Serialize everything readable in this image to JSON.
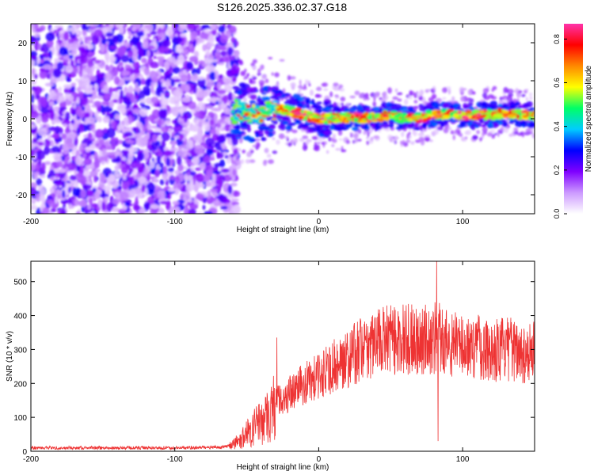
{
  "title": "S126.2025.336.02.37.G18",
  "chart_data": [
    {
      "type": "heatmap",
      "xlabel": "Height of straight line (km)",
      "ylabel": "Frequency (Hz)",
      "xlim": [
        -200,
        150
      ],
      "ylim": [
        -25,
        25
      ],
      "xticks": [
        -200,
        -100,
        0,
        100
      ],
      "yticks": [
        -20,
        -10,
        0,
        10,
        20
      ],
      "colorbar": {
        "label": "Normalized spectral amplitude",
        "range": [
          0.0,
          0.87
        ],
        "ticks": [
          0.0,
          0.2,
          0.4,
          0.6,
          0.8
        ],
        "colors": [
          "#ffffff",
          "#cc99ff",
          "#7f00ff",
          "#0000ff",
          "#00ccff",
          "#00ff66",
          "#ffff00",
          "#ff8800",
          "#ff0000",
          "#ff33aa"
        ]
      },
      "regions": [
        {
          "name": "noise",
          "x_range": [
            -200,
            -60
          ],
          "y_range": [
            -25,
            25
          ],
          "amplitude_range": [
            0.0,
            0.25
          ]
        },
        {
          "name": "signal",
          "x_range": [
            -60,
            150
          ],
          "center_frequency_hz": 0.5,
          "amplitude_range": [
            0.3,
            0.87
          ]
        }
      ],
      "signal_trace": {
        "x": [
          -58,
          -50,
          -40,
          -30,
          -20,
          -10,
          0,
          10,
          20,
          30,
          40,
          50,
          60,
          70,
          80,
          90,
          100,
          110,
          120,
          130,
          140,
          150
        ],
        "y": [
          2.5,
          1.5,
          1.0,
          2.5,
          2.0,
          1.0,
          0.0,
          0.2,
          0.3,
          0.2,
          0.5,
          1.0,
          0.0,
          0.3,
          1.0,
          1.2,
          1.0,
          1.0,
          1.0,
          1.5,
          1.0,
          0.8
        ]
      }
    },
    {
      "type": "line",
      "xlabel": "Height of straight line (km)",
      "ylabel": "SNR (10 * v/v)",
      "xlim": [
        -200,
        150
      ],
      "ylim": [
        0,
        560
      ],
      "xticks": [
        -200,
        -100,
        0,
        100
      ],
      "yticks": [
        0,
        100,
        200,
        300,
        400,
        500
      ],
      "color": "#ee3333",
      "series": [
        {
          "x": [
            -200,
            -150,
            -100,
            -65,
            -55,
            -45,
            -35,
            -28,
            -20,
            -10,
            0,
            10,
            20,
            30,
            40,
            50,
            60,
            70,
            80,
            83,
            90,
            100,
            110,
            120,
            130,
            140,
            150
          ],
          "y": [
            10,
            10,
            10,
            12,
            30,
            70,
            110,
            150,
            170,
            200,
            220,
            250,
            275,
            300,
            320,
            330,
            330,
            330,
            330,
            340,
            320,
            310,
            310,
            300,
            300,
            295,
            290
          ]
        }
      ],
      "peaks": [
        {
          "x": -29,
          "y": 335
        },
        {
          "x": 50,
          "y": 430
        },
        {
          "x": 82,
          "y": 560
        },
        {
          "x": 83,
          "y": 30
        }
      ]
    }
  ]
}
